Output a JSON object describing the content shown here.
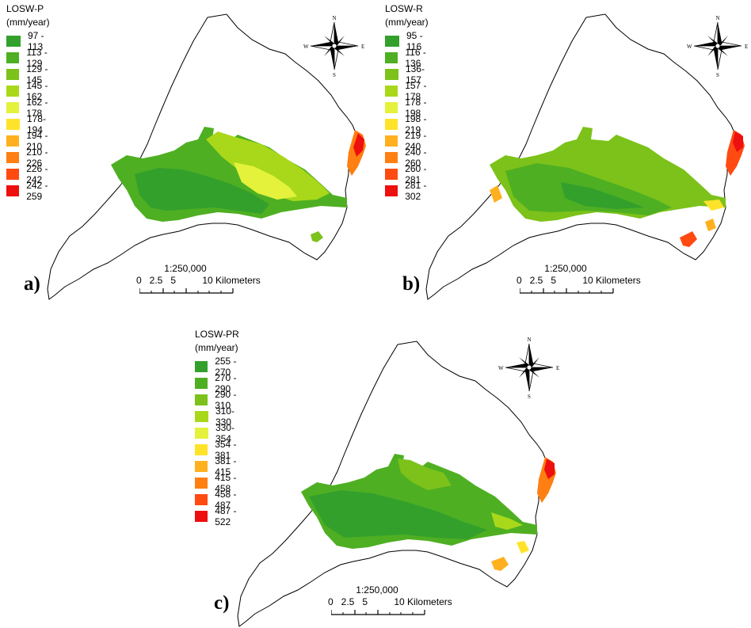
{
  "panels": [
    {
      "id": "a",
      "label": "a)",
      "legend_title": "LOSW-P",
      "legend_unit": "(mm/year)",
      "classes": [
        {
          "range": "97 - 113",
          "color": "#33a02c"
        },
        {
          "range": "113 - 129",
          "color": "#4eaf22"
        },
        {
          "range": "129 - 145",
          "color": "#7cc21a"
        },
        {
          "range": "145 - 162",
          "color": "#a9d81a"
        },
        {
          "range": "162 - 178",
          "color": "#e4f23c"
        },
        {
          "range": "178- 194",
          "color": "#ffe32a"
        },
        {
          "range": "194 - 210",
          "color": "#ffb01f"
        },
        {
          "range": "210 - 226",
          "color": "#ff7f12"
        },
        {
          "range": "226 - 242",
          "color": "#ff4a12"
        },
        {
          "range": "242 - 259",
          "color": "#ee0f0f"
        }
      ],
      "scale_ratio": "1:250,000",
      "scale_ticks": "0   2.5   5          10 Kilometers"
    },
    {
      "id": "b",
      "label": "b)",
      "legend_title": "LOSW-R",
      "legend_unit": "(mm/year)",
      "classes": [
        {
          "range": "95 - 116",
          "color": "#33a02c"
        },
        {
          "range": "116 - 136",
          "color": "#4eaf22"
        },
        {
          "range": "136- 157",
          "color": "#7cc21a"
        },
        {
          "range": "157 - 178",
          "color": "#a9d81a"
        },
        {
          "range": "178 - 198",
          "color": "#e4f23c"
        },
        {
          "range": "198 - 219",
          "color": "#ffe32a"
        },
        {
          "range": "219 - 240",
          "color": "#ffb01f"
        },
        {
          "range": "240 - 260",
          "color": "#ff7f12"
        },
        {
          "range": "260 - 281",
          "color": "#ff4a12"
        },
        {
          "range": "281 - 302",
          "color": "#ee0f0f"
        }
      ],
      "scale_ratio": "1:250,000",
      "scale_ticks": "0   2.5   5          10 Kilometers"
    },
    {
      "id": "c",
      "label": "c)",
      "legend_title": "LOSW-PR",
      "legend_unit": "(mm/year)",
      "classes": [
        {
          "range": "255 - 270",
          "color": "#33a02c"
        },
        {
          "range": "270 - 290",
          "color": "#4eaf22"
        },
        {
          "range": "290 - 310",
          "color": "#7cc21a"
        },
        {
          "range": "310- 330",
          "color": "#a9d81a"
        },
        {
          "range": "330- 354",
          "color": "#e4f23c"
        },
        {
          "range": "354 - 381",
          "color": "#ffe32a"
        },
        {
          "range": "381 - 415",
          "color": "#ffb01f"
        },
        {
          "range": "415 - 458",
          "color": "#ff7f12"
        },
        {
          "range": "458 - 487",
          "color": "#ff4a12"
        },
        {
          "range": "487 - 522",
          "color": "#ee0f0f"
        }
      ],
      "scale_ratio": "1:250,000",
      "scale_ticks": "0   2.5   5          10 Kilometers"
    }
  ],
  "compass": {
    "n": "N",
    "s": "S",
    "e": "E",
    "w": "W"
  }
}
